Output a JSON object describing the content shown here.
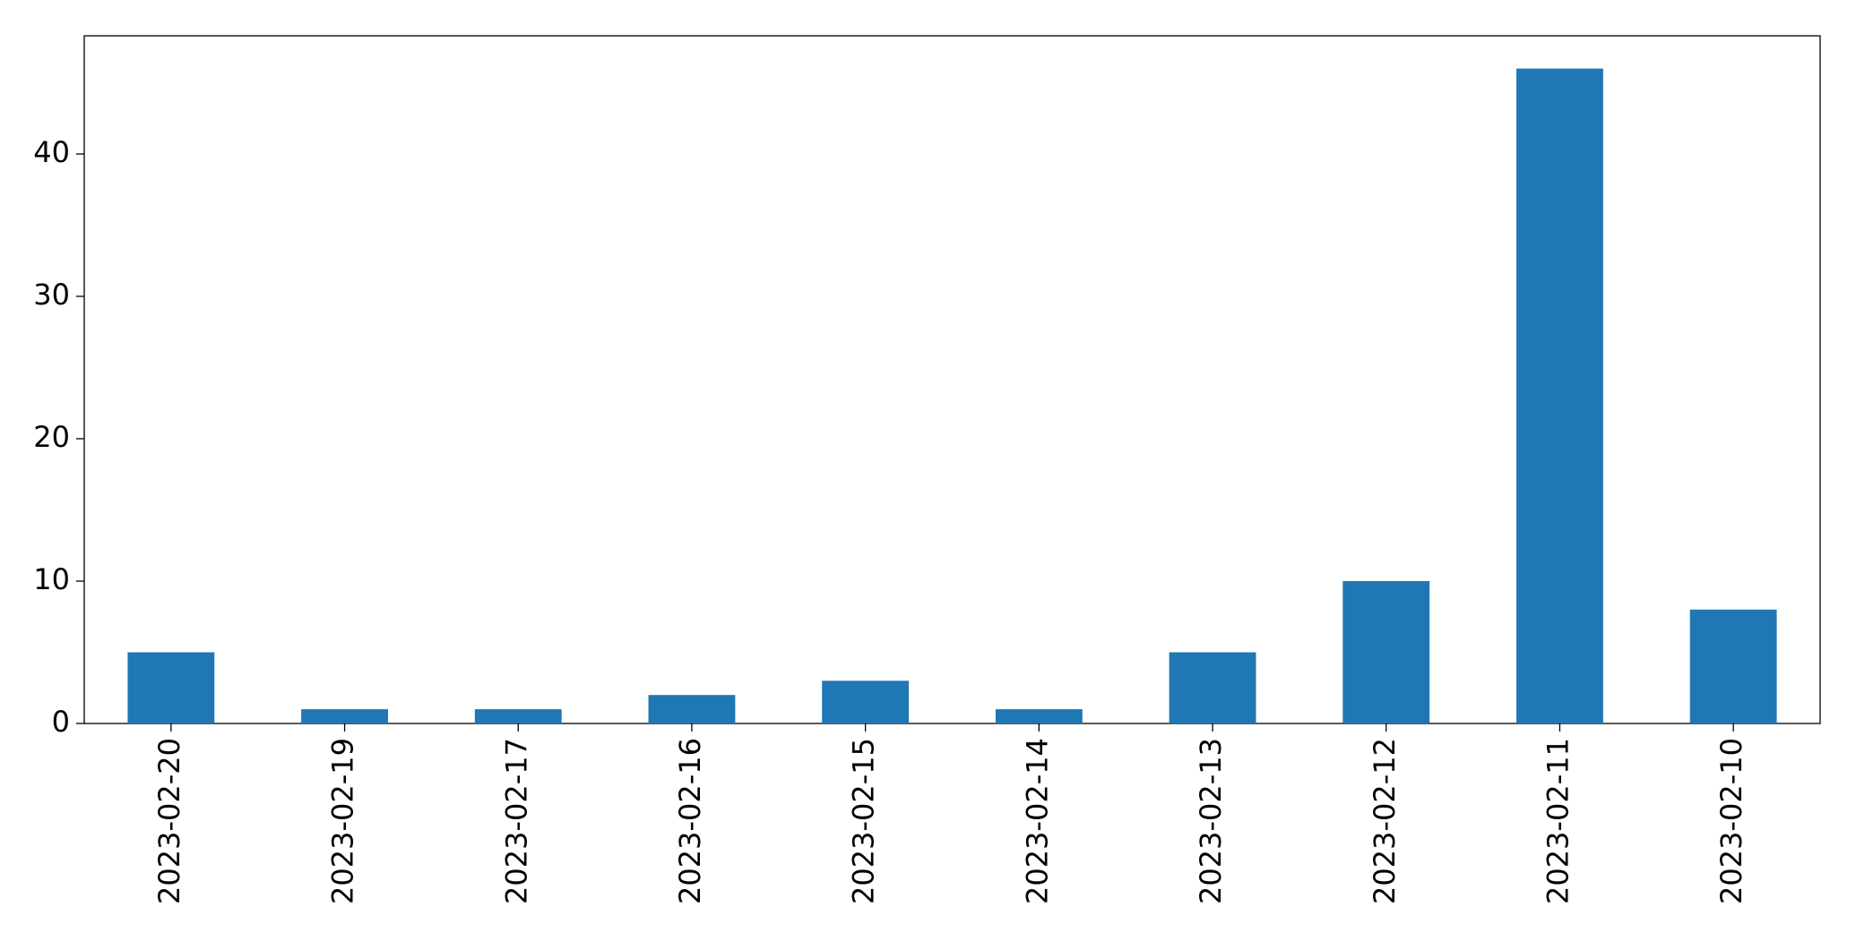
{
  "chart_data": {
    "type": "bar",
    "categories": [
      "2023-02-20",
      "2023-02-19",
      "2023-02-17",
      "2023-02-16",
      "2023-02-15",
      "2023-02-14",
      "2023-02-13",
      "2023-02-12",
      "2023-02-11",
      "2023-02-10"
    ],
    "values": [
      5,
      1,
      1,
      2,
      3,
      1,
      5,
      10,
      46,
      8
    ],
    "color": "#1f77b4",
    "ylim": [
      0,
      48.3
    ],
    "yticks": [
      0,
      10,
      20,
      30,
      40
    ],
    "grid": false
  }
}
